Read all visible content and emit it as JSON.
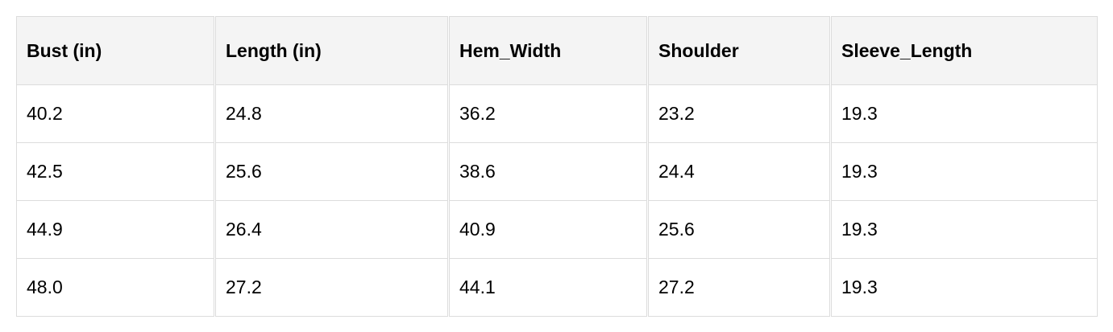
{
  "table": {
    "headers": [
      "Bust (in)",
      "Length (in)",
      "Hem_Width",
      "Shoulder",
      "Sleeve_Length"
    ],
    "rows": [
      [
        "40.2",
        "24.8",
        "36.2",
        "23.2",
        "19.3"
      ],
      [
        "42.5",
        "25.6",
        "38.6",
        "24.4",
        "19.3"
      ],
      [
        "44.9",
        "26.4",
        "40.9",
        "25.6",
        "19.3"
      ],
      [
        "48.0",
        "27.2",
        "44.1",
        "27.2",
        "19.3"
      ]
    ]
  }
}
